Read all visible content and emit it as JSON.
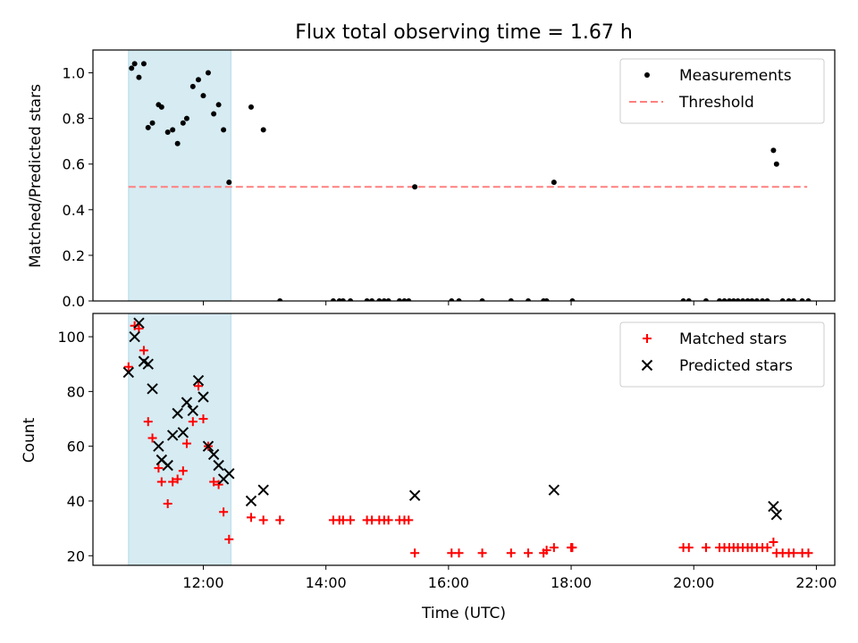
{
  "title": "Flux total observing time = 1.67 h",
  "colors": {
    "measurement": "#000000",
    "threshold": "#ff7f7f",
    "matched": "#ff0000",
    "predicted": "#000000",
    "highlight": "#add8e6"
  },
  "chart_data": [
    {
      "type": "scatter",
      "ylabel": "Matched/Predicted stars",
      "xlabel": "",
      "x_unit": "hours UTC",
      "xlim": [
        10.2,
        22.3
      ],
      "ylim": [
        0.0,
        1.1
      ],
      "grid": false,
      "legend_position": "top-right",
      "x_tick_labels": [
        "12:00",
        "14:00",
        "16:00",
        "18:00",
        "20:00",
        "22:00"
      ],
      "y_ticks": [
        0.0,
        0.2,
        0.4,
        0.6,
        0.8,
        1.0
      ],
      "y_tick_labels": [
        "0.0",
        "0.2",
        "0.4",
        "0.6",
        "0.8",
        "1.0"
      ],
      "highlight_span": [
        "10.78",
        "12.45"
      ],
      "threshold": {
        "name": "Threshold",
        "y": 0.5,
        "x_range": [
          10.78,
          21.85
        ]
      },
      "series": [
        {
          "name": "Measurements",
          "x": [
            10.83,
            10.88,
            10.95,
            11.03,
            11.1,
            11.17,
            11.27,
            11.32,
            11.42,
            11.5,
            11.58,
            11.67,
            11.73,
            11.83,
            11.92,
            12.0,
            12.08,
            12.17,
            12.25,
            12.33,
            12.42,
            12.78,
            12.98,
            13.25,
            14.12,
            14.22,
            14.28,
            14.4,
            14.67,
            14.75,
            14.87,
            14.95,
            15.02,
            15.2,
            15.28,
            15.35,
            15.45,
            16.05,
            16.17,
            16.55,
            17.02,
            17.3,
            17.55,
            17.6,
            17.72,
            18.02,
            19.83,
            19.92,
            20.2,
            20.42,
            20.5,
            20.58,
            20.65,
            20.72,
            20.8,
            20.88,
            20.95,
            21.03,
            21.12,
            21.2,
            21.3,
            21.35,
            21.45,
            21.55,
            21.63,
            21.77,
            21.87
          ],
          "y": [
            1.02,
            1.04,
            0.98,
            1.04,
            0.76,
            0.78,
            0.86,
            0.85,
            0.74,
            0.75,
            0.69,
            0.78,
            0.8,
            0.94,
            0.97,
            0.9,
            1.0,
            0.82,
            0.86,
            0.75,
            0.52,
            0.85,
            0.75,
            0.0,
            0.0,
            0.0,
            0.0,
            0.0,
            0.0,
            0.0,
            0.0,
            0.0,
            0.0,
            0.0,
            0.0,
            0.0,
            0.5,
            0.0,
            0.0,
            0.0,
            0.0,
            0.0,
            0.0,
            0.0,
            0.52,
            0.0,
            0.0,
            0.0,
            0.0,
            0.0,
            0.0,
            0.0,
            0.0,
            0.0,
            0.0,
            0.0,
            0.0,
            0.0,
            0.0,
            0.0,
            0.66,
            0.6,
            0.0,
            0.0,
            0.0,
            0.0,
            0.0
          ]
        }
      ]
    },
    {
      "type": "scatter",
      "ylabel": "Count",
      "xlabel": "Time (UTC)",
      "x_unit": "hours UTC",
      "xlim": [
        10.2,
        22.3
      ],
      "ylim": [
        16.5,
        108.5
      ],
      "grid": false,
      "legend_position": "top-right",
      "x_tick_labels": [
        "12:00",
        "14:00",
        "16:00",
        "18:00",
        "20:00",
        "22:00"
      ],
      "y_ticks": [
        20,
        40,
        60,
        80,
        100
      ],
      "y_tick_labels": [
        "20",
        "40",
        "60",
        "80",
        "100"
      ],
      "highlight_span": [
        "10.78",
        "12.45"
      ],
      "series": [
        {
          "name": "Matched stars",
          "marker": "+",
          "x": [
            10.78,
            10.88,
            10.95,
            11.03,
            11.1,
            11.17,
            11.27,
            11.32,
            11.42,
            11.5,
            11.58,
            11.67,
            11.73,
            11.83,
            11.92,
            12.0,
            12.08,
            12.17,
            12.25,
            12.33,
            12.42,
            12.78,
            12.98,
            13.25,
            14.12,
            14.22,
            14.28,
            14.4,
            14.67,
            14.75,
            14.87,
            14.95,
            15.02,
            15.2,
            15.28,
            15.35,
            15.45,
            16.05,
            16.17,
            16.55,
            17.02,
            17.3,
            17.55,
            17.6,
            17.72,
            18.0,
            18.02,
            19.83,
            19.92,
            20.2,
            20.42,
            20.5,
            20.58,
            20.65,
            20.72,
            20.8,
            20.88,
            20.95,
            21.03,
            21.12,
            21.2,
            21.3,
            21.35,
            21.45,
            21.55,
            21.63,
            21.77,
            21.87
          ],
          "y": [
            89,
            104,
            103,
            95,
            69,
            63,
            52,
            47,
            39,
            47,
            48,
            51,
            61,
            69,
            82,
            70,
            60,
            47,
            46,
            36,
            26,
            34,
            33,
            33,
            33,
            33,
            33,
            33,
            33,
            33,
            33,
            33,
            33,
            33,
            33,
            33,
            21,
            21,
            21,
            21,
            21,
            21,
            21,
            22,
            23,
            23,
            23,
            23,
            23,
            23,
            23,
            23,
            23,
            23,
            23,
            23,
            23,
            23,
            23,
            23,
            23,
            25,
            21,
            21,
            21,
            21,
            21,
            21
          ]
        },
        {
          "name": "Predicted stars",
          "marker": "x",
          "x": [
            10.78,
            10.88,
            10.95,
            11.03,
            11.1,
            11.17,
            11.27,
            11.32,
            11.42,
            11.5,
            11.58,
            11.67,
            11.73,
            11.83,
            11.92,
            12.0,
            12.08,
            12.17,
            12.25,
            12.33,
            12.42,
            12.78,
            12.98,
            15.45,
            17.72,
            21.3,
            21.35
          ],
          "y": [
            87,
            100,
            105,
            91,
            90,
            81,
            60,
            55,
            53,
            64,
            72,
            65,
            76,
            73,
            84,
            78,
            60,
            57,
            53,
            48,
            50,
            40,
            44,
            42,
            44,
            38,
            35
          ]
        }
      ]
    }
  ]
}
